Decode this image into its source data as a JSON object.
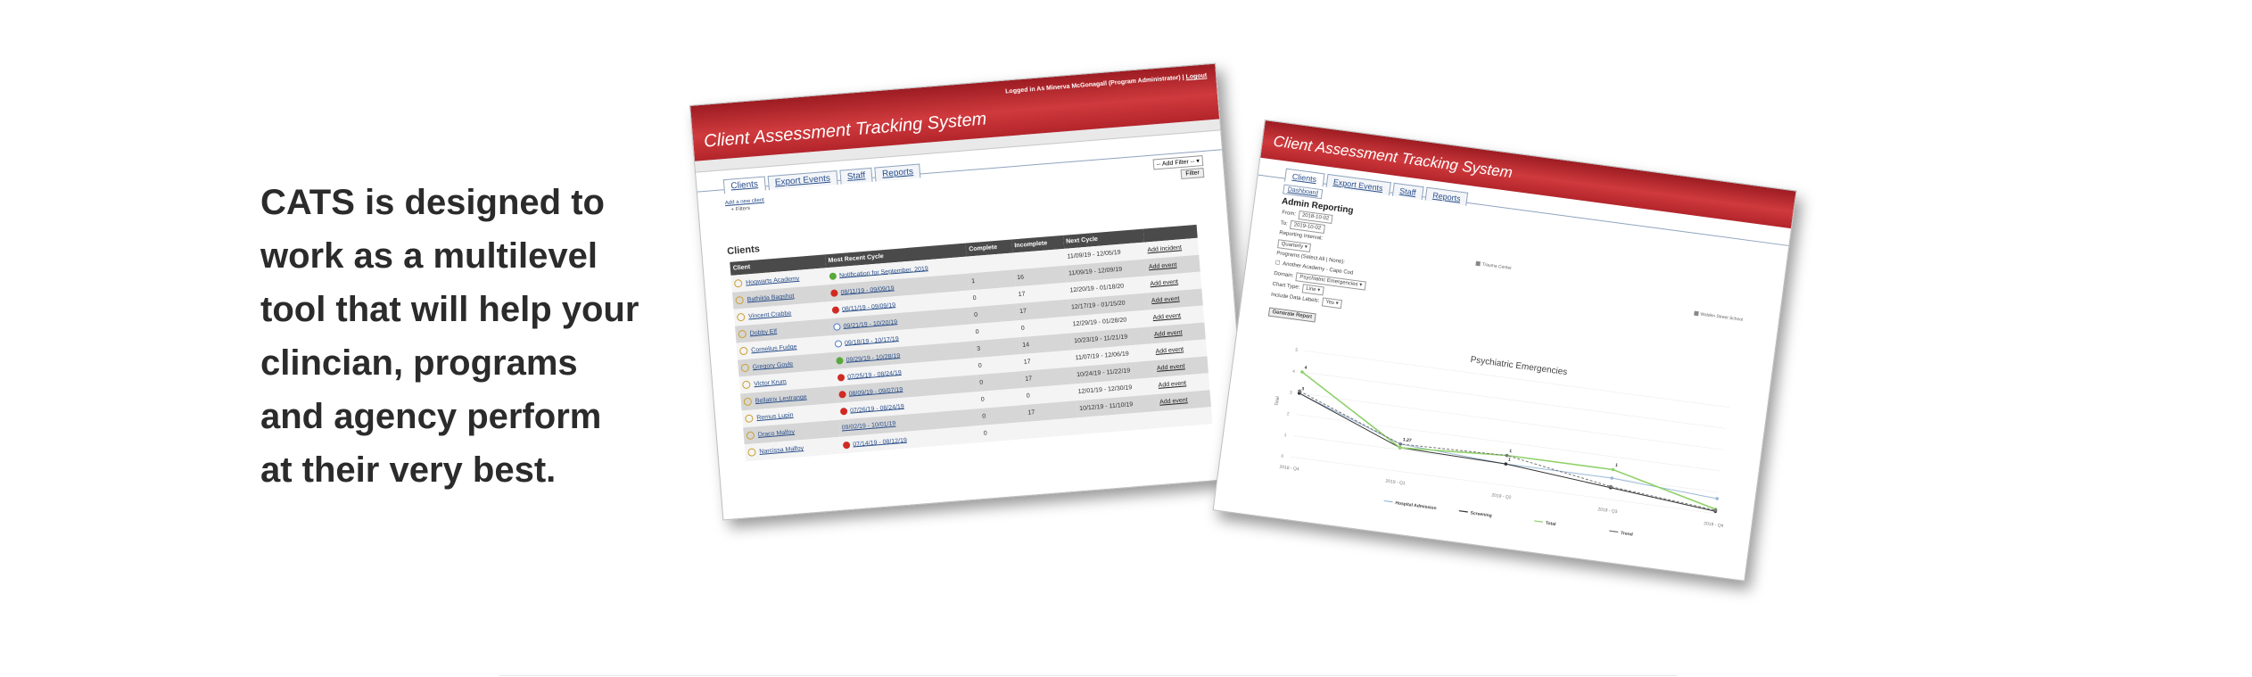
{
  "tagline": [
    "CATS is designed to",
    "work as a multilevel",
    "tool that will help your",
    "clincian, programs",
    "and agency perform",
    "at their very best."
  ],
  "colors": {
    "header_red": "#c33035",
    "table_header": "#4a4a4a",
    "line_green": "#8fd16a",
    "line_blue": "#9bb8d8",
    "line_dark": "#333333"
  },
  "shot1": {
    "login": "Logged in As Minerva McGonagall (Program Administrator)",
    "logout": "Logout",
    "app_title": "Client Assessment Tracking System",
    "tabs": [
      "Clients",
      "Export Events",
      "Staff",
      "Reports"
    ],
    "add_client": "Add a new client",
    "filters": "+ Filters",
    "filter_select": "-- Add Filter --",
    "filter_button": "Filter",
    "section": "Clients",
    "columns": [
      "Client",
      "Most Recent Cycle",
      "Complete",
      "Incomplete",
      "Next Cycle",
      ""
    ],
    "rows": [
      {
        "client": "Hogwarts Academy",
        "status": "green",
        "cycle": "Notification for September, 2019",
        "complete": "",
        "incomplete": "",
        "next": "11/09/19 - 12/05/19",
        "action": "Add incident"
      },
      {
        "client": "Bathilda Bagshot",
        "status": "red",
        "cycle": "08/11/19 - 09/09/19",
        "complete": "1",
        "incomplete": "16",
        "next": "11/09/19 - 12/09/19",
        "action": "Add event"
      },
      {
        "client": "Vincent Crabbe",
        "status": "red",
        "cycle": "08/11/19 - 09/09/19",
        "complete": "0",
        "incomplete": "17",
        "next": "12/20/19 - 01/18/20",
        "action": "Add event"
      },
      {
        "client": "Dobby Elf",
        "status": "blue",
        "cycle": "09/21/19 - 10/20/19",
        "complete": "0",
        "incomplete": "17",
        "next": "12/17/19 - 01/15/20",
        "action": "Add event"
      },
      {
        "client": "Cornelius Fudge",
        "status": "blue",
        "cycle": "09/18/19 - 10/17/19",
        "complete": "0",
        "incomplete": "0",
        "next": "12/29/19 - 01/28/20",
        "action": "Add event"
      },
      {
        "client": "Gregory Goyle",
        "status": "green",
        "cycle": "09/29/19 - 10/28/19",
        "complete": "3",
        "incomplete": "14",
        "next": "10/23/19 - 11/21/19",
        "action": "Add event"
      },
      {
        "client": "Victor Krum",
        "status": "red",
        "cycle": "07/25/19 - 08/24/19",
        "complete": "0",
        "incomplete": "17",
        "next": "11/07/19 - 12/06/19",
        "action": "Add event"
      },
      {
        "client": "Bellatrix Lestrange",
        "status": "red",
        "cycle": "08/09/19 - 09/07/19",
        "complete": "0",
        "incomplete": "17",
        "next": "10/24/19 - 11/22/19",
        "action": "Add event"
      },
      {
        "client": "Remus Lupin",
        "status": "red",
        "cycle": "07/26/19 - 08/24/19",
        "complete": "0",
        "incomplete": "0",
        "next": "12/01/19 - 12/30/19",
        "action": "Add event"
      },
      {
        "client": "Draco Malfoy",
        "status": "none",
        "cycle": "09/02/19 - 10/01/19",
        "complete": "0",
        "incomplete": "17",
        "next": "10/12/19 - 11/10/19",
        "action": "Add event"
      },
      {
        "client": "Narcissa Malfoy",
        "status": "red",
        "cycle": "07/14/19 - 08/12/19",
        "complete": "0",
        "incomplete": "",
        "next": "",
        "action": ""
      }
    ]
  },
  "shot2": {
    "app_title": "Client Assessment Tracking System",
    "tabs": [
      "Clients",
      "Export Events",
      "Staff",
      "Reports"
    ],
    "dashboard": "Dashboard",
    "admin_title": "Admin Reporting",
    "from_label": "From:",
    "from_value": "2018-10-02",
    "to_label": "To:",
    "to_value": "2019-10-02",
    "interval_label": "Reporting Interval:",
    "interval_value": "Quarterly",
    "programs_label": "Programs (Select All | None):",
    "program_option": "Another Academy - Cape Cod",
    "domain_label": "Domain:",
    "domain_value": "Psychiatric Emergencies",
    "chart_type_label": "Chart Type:",
    "chart_type_value": "Line",
    "labels_label": "Include Data Labels:",
    "labels_value": "Yes",
    "generate": "Generate Report",
    "legend_top": [
      "Trauma Center",
      "Walden Street School"
    ]
  },
  "chart_data": {
    "type": "line",
    "title": "Psychiatric Emergencies",
    "ylabel": "Total",
    "categories": [
      "2018 - Q4",
      "2019 - Q1",
      "2019 - Q2",
      "2019 - Q3",
      "2019 - Q4"
    ],
    "ylim": [
      0,
      5
    ],
    "series": [
      {
        "name": "Hospital Admission",
        "values": [
          3,
          1.27,
          1,
          1,
          0.7
        ]
      },
      {
        "name": "Screening",
        "values": [
          3,
          1.1,
          1,
          0.55,
          0.1
        ]
      },
      {
        "name": "Total",
        "values": [
          4,
          1.1,
          1.4,
          1.4,
          0.2
        ]
      },
      {
        "name": "Trend",
        "values": [
          3.1,
          1.27,
          1.4,
          0.6,
          0.15
        ]
      }
    ],
    "data_labels": [
      "4",
      "3",
      "1.27",
      "1",
      "1",
      "1"
    ]
  }
}
